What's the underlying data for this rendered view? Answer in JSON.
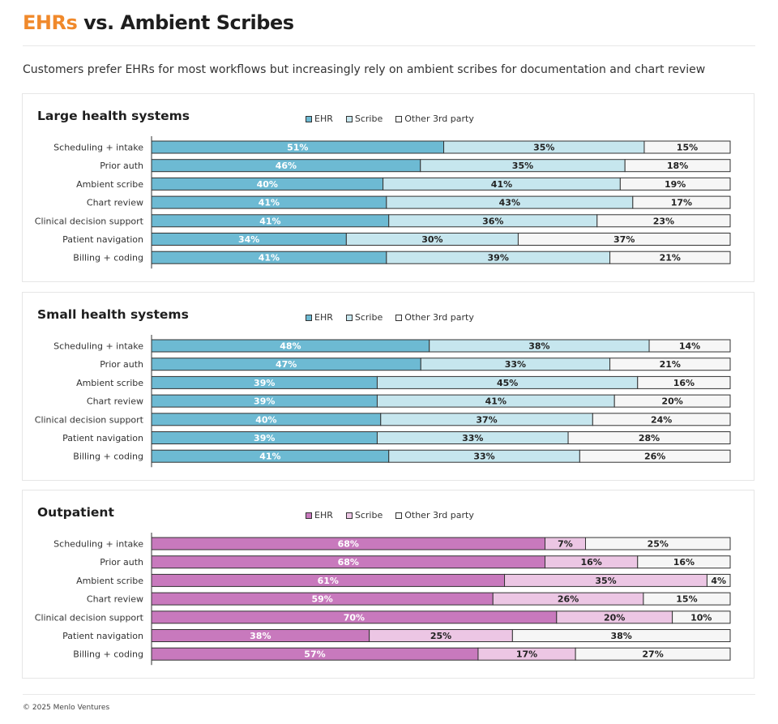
{
  "header": {
    "title_accent": "EHRs",
    "title_rest": " vs. Ambient Scribes",
    "subtitle": "Customers prefer EHRs for most workflows but increasingly rely on ambient scribes for documentation and chart review"
  },
  "footer": {
    "copyright": "© 2025 Menlo Ventures"
  },
  "colors": {
    "title_accent": "#f0892b",
    "ehr_blue": "#6dbad3",
    "scribe_blue": "#c6e6ee",
    "ehr_pink": "#c879bd",
    "scribe_pink": "#ecc6e4",
    "other": "#f6f6f6"
  },
  "chart_data": [
    {
      "type": "bar",
      "stacked": true,
      "orientation": "horizontal",
      "title": "Large health systems",
      "legend_placement": "top",
      "categories": [
        "Scheduling + intake",
        "Prior auth",
        "Ambient scribe",
        "Chart review",
        "Clinical decision support",
        "Patient navigation",
        "Billing + coding"
      ],
      "series": [
        {
          "name": "EHR",
          "values": [
            51,
            46,
            40,
            41,
            41,
            34,
            41
          ]
        },
        {
          "name": "Scribe",
          "values": [
            35,
            35,
            41,
            43,
            36,
            30,
            39
          ]
        },
        {
          "name": "Other 3rd party",
          "values": [
            15,
            18,
            19,
            17,
            23,
            37,
            21
          ]
        }
      ]
    },
    {
      "type": "bar",
      "stacked": true,
      "orientation": "horizontal",
      "title": "Small health systems",
      "legend_placement": "top",
      "categories": [
        "Scheduling + intake",
        "Prior auth",
        "Ambient scribe",
        "Chart review",
        "Clinical decision support",
        "Patient navigation",
        "Billing + coding"
      ],
      "series": [
        {
          "name": "EHR",
          "values": [
            48,
            47,
            39,
            39,
            40,
            39,
            41
          ]
        },
        {
          "name": "Scribe",
          "values": [
            38,
            33,
            45,
            41,
            37,
            33,
            33
          ]
        },
        {
          "name": "Other 3rd party",
          "values": [
            14,
            21,
            16,
            20,
            24,
            28,
            26
          ]
        }
      ]
    },
    {
      "type": "bar",
      "stacked": true,
      "orientation": "horizontal",
      "title": "Outpatient",
      "legend_placement": "top",
      "categories": [
        "Scheduling + intake",
        "Prior auth",
        "Ambient scribe",
        "Chart review",
        "Clinical decision support",
        "Patient navigation",
        "Billing + coding"
      ],
      "series": [
        {
          "name": "EHR",
          "values": [
            68,
            68,
            61,
            59,
            70,
            38,
            57
          ]
        },
        {
          "name": "Scribe",
          "values": [
            7,
            16,
            35,
            26,
            20,
            25,
            17
          ]
        },
        {
          "name": "Other 3rd party",
          "values": [
            25,
            16,
            4,
            15,
            10,
            38,
            27
          ]
        }
      ]
    }
  ]
}
